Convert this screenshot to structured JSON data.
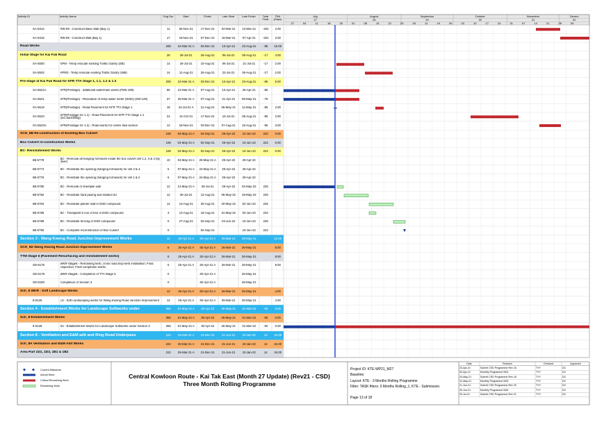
{
  "columns": [
    "Activity ID",
    "Activity Name",
    "Orig Dur",
    "Start",
    "Finish",
    "Late Start",
    "Late Finish",
    "Total Float",
    "TBA (Days)"
  ],
  "timeline": {
    "months": [
      "July",
      "August",
      "September",
      "October",
      "November",
      "Decem"
    ],
    "periods": [
      27,
      28,
      29,
      30,
      31,
      32
    ],
    "weeks": [
      "27",
      "04",
      "11",
      "18",
      "25",
      "01",
      "08",
      "15",
      "22",
      "29",
      "05",
      "12",
      "19",
      "26",
      "03",
      "10",
      "17",
      "24",
      "31",
      "07",
      "14",
      "21",
      "28",
      "05"
    ]
  },
  "rows": [
    {
      "id": "SA-5312",
      "name": "RW-09 - Construct Base Slab (Bay 1)",
      "dur": 11,
      "start": "05-Nov-21",
      "finish": "17-Nov-21",
      "ls": "02-Mar-21",
      "lf": "13-Mar-21",
      "tf": -202,
      "tba": "2.00"
    },
    {
      "id": "SA-5316",
      "name": "RW-09 - Construct Wall (Bay 1)",
      "dur": 17,
      "start": "18-Nov-21",
      "finish": "07-Dec-21",
      "ls": "15-Mar-21",
      "lf": "07-Apr-21",
      "tf": -201,
      "tba": "2.00"
    },
    {
      "name": "Road Works",
      "dur": 208,
      "start": "24-Mar-21 A",
      "finish": "03-Dec-21",
      "ls": "13-Apr-21",
      "lf": "23-Aug-21",
      "tf": -85,
      "tba": "10.00"
    },
    {
      "name": "Initial Stage for Kai Fuk Road",
      "dur": 28,
      "start": "26-Jul-21",
      "finish": "26-Aug-21",
      "ls": "06-Jul-21",
      "lf": "06-Aug-21",
      "tf": -17,
      "tba": "4.00"
    },
    {
      "id": "SA-5500",
      "name": "KPM - Temp relocate existing Traffic Gantry (EB)",
      "dur": 14,
      "start": "26-Jul-21",
      "finish": "10-Aug-21",
      "ls": "06-Jul-21",
      "lf": "21-Jul-21",
      "tf": -17,
      "tba": "2.00"
    },
    {
      "id": "SA-5502",
      "name": "KPRD - Temp relocate existing Traffic Gantry (WB)",
      "dur": 14,
      "start": "11-Aug-21",
      "finish": "26-Aug-21",
      "ls": "22-Jul-21",
      "lf": "06-Aug-21",
      "tf": -17,
      "tba": "2.00"
    },
    {
      "name": "Pre-stage at Kai Fuk Road for KFR TTA Stage 1, 1.1, 1.2 & 1.3",
      "dur": 208,
      "start": "24-Mar-21 A",
      "finish": "03-Dec-21",
      "ls": "13-Apr-21",
      "lf": "23-Aug-21",
      "tf": -85,
      "tba": "6.00"
    },
    {
      "id": "SA-5521A",
      "name": "KFR(Prestage) - additional watermain works (FMS-199)",
      "dur": 55,
      "start": "24-Mar-21 A",
      "finish": "07-Aug-21",
      "ls": "13-Apr-21",
      "lf": "26-Apr-21",
      "tf": -85
    },
    {
      "id": "SA-5521",
      "name": "KFR(Prestage) - Relocation of temp water meter (WSD) (SW-129)",
      "dur": 37,
      "start": "25-Mar-21 A",
      "finish": "07-Aug-21",
      "ls": "21-Apr-21",
      "lf": "05-May-21",
      "tf": -78
    },
    {
      "id": "SA-5519",
      "name": "KFR(Prestage) - Road Pavement for KFR TTA Stage 1",
      "dur": 18,
      "start": "24-Jul-21 A",
      "finish": "21-Aug-21",
      "ls": "06-May-21",
      "lf": "11-May-21",
      "tf": -85,
      "tba": "2.00"
    },
    {
      "id": "SA-5523",
      "name": "KFR(Prestage for 1.1) - Road Pavement for KFR TTA Stage 1.1 (incl.backfilling)",
      "dur": 24,
      "start": "21-Oct-21",
      "finish": "17-Nov-21",
      "ls": "10-Jul-21",
      "lf": "06-Aug-21",
      "tf": -85,
      "tba": "2.00"
    },
    {
      "id": "SA-5523A",
      "name": "KFR(Prestage for 1.2) - Road works for centre flow section",
      "dur": 14,
      "start": "18-Nov-21",
      "finish": "03-Dec-21",
      "ls": "07-Aug-21",
      "lf": "23-Aug-21",
      "tf": -85,
      "tba": "3.00"
    },
    {
      "name": "SCH_6B Re-construction of Existing Box Culvert",
      "dur": 108,
      "start": "04-May-21 A",
      "finish": "02-Sep-21",
      "ls": "29-Apr-22",
      "lf": "10-Jun-22",
      "tf": 222,
      "tba": "0.00"
    },
    {
      "name": "Box Culvert re-construction Works",
      "dur": 108,
      "start": "04-May-21 A",
      "finish": "02-Sep-21",
      "ls": "29-Apr-22",
      "lf": "10-Jun-22",
      "tf": 222,
      "tba": "0.00"
    },
    {
      "name": "BC- Reinstatement Works",
      "dur": 108,
      "start": "04-May-21 A",
      "finish": "02-Sep-21",
      "ls": "29-Apr-22",
      "lf": "10-Jun-22",
      "tf": 222,
      "tba": "0.00"
    },
    {
      "id": "6B-5778",
      "name": "BC - Removal all hanging formwork inside the box culvert cell 1,2, 3 & 4 (by diver)",
      "dur": 10,
      "start": "04-May-21 A",
      "finish": "25-May-21 A",
      "ls": "29-Apr-22",
      "lf": "29-Apr-22"
    },
    {
      "id": "6B-5774",
      "name": "BC - Reinstate the opening  (hanging formwork) for cell 3 & 4",
      "dur": 6,
      "start": "07-May-21 A",
      "finish": "24-May-21 A",
      "ls": "29-Apr-22",
      "lf": "29-Apr-22"
    },
    {
      "id": "6B-5776",
      "name": "BC - Reinstate the opening  (hanging formwork) for cell 1 & 2",
      "dur": 6,
      "start": "07-May-21 A",
      "finish": "24-May-21 A",
      "ls": "29-Apr-22",
      "lf": "29-Apr-22"
    },
    {
      "id": "6B-5780",
      "name": "BC - Removal of sheetpile wall",
      "dur": 12,
      "start": "14-May-21 A",
      "finish": "29-Jul-21",
      "ls": "29-Apr-22",
      "lf": "04-May-22",
      "tf": 225
    },
    {
      "id": "6B-5782",
      "name": "BC - Reinstate hard paving and related UU",
      "dur": 12,
      "start": "30-Jul-21",
      "finish": "12-Aug-21",
      "ls": "05-May-22",
      "lf": "19-May-22",
      "tf": 225
    },
    {
      "id": "6B-5784",
      "name": "BC - Reinstate planter wall in DSD compound",
      "dur": 12,
      "start": "13-Aug-21",
      "finish": "26-Aug-21",
      "ls": "20-May-22",
      "lf": "02-Jun-22",
      "tf": 225
    },
    {
      "id": "6B-5786",
      "name": "BC - Transplant 5 nos of tree in DSD compound",
      "dur": 3,
      "start": "13-Aug-21",
      "finish": "16-Aug-21",
      "ls": "31-May-22",
      "lf": "02-Jun-22",
      "tf": 234
    },
    {
      "id": "6B-5788",
      "name": "BC - Reinstate fencing in DSD compound",
      "dur": 6,
      "start": "27-Aug-21",
      "finish": "02-Sep-21",
      "ls": "04-Jun-22",
      "lf": "10-Jun-22",
      "tf": 225
    },
    {
      "id": "6B-5790",
      "name": "BC - Complete reconstruction of Box Culvert",
      "dur": 0,
      "finish": "02-Sep-21",
      "lf": "10-Jun-22",
      "tf": 222
    },
    {
      "name": "Section 3 - Wang Kwong Road Junction Improvement Works",
      "dur": 12,
      "start": "25-Apr-21 A",
      "finish": "30-Apr-21 A",
      "ls": "26-Mar-21",
      "lf": "26-May-21",
      "tba": "12.00"
    },
    {
      "name": "SCH_5D Wang Kwong Road Junction Improvement Works",
      "dur": 6,
      "start": "25-Apr-21 A",
      "finish": "30-Apr-21 A",
      "ls": "26-Mar-21",
      "lf": "26-May-21",
      "tba": "8.00"
    },
    {
      "name": "TTM Stage 6 (Pavement Resurfacing and reinstatement works)",
      "dur": 6,
      "start": "25-Apr-21 A",
      "finish": "30-Apr-21 A",
      "ls": "26-Mar-21",
      "lf": "26-May-21",
      "tba": "8.00"
    },
    {
      "id": "SD-6176",
      "name": "WKR-Stage6 - Remaining kerb, cross road drop kerb installation; Final inspection; Final completion works.",
      "dur": 6,
      "start": "25-Apr-21 A",
      "finish": "30-Apr-21 A",
      "ls": "26-Mar-21",
      "lf": "26-May-21",
      "tba": "8.00"
    },
    {
      "id": "SD-6178",
      "name": "WKR-Stage6 - Completion of TTA Stage 6",
      "dur": 0,
      "finish": "30-Apr-21 A",
      "lf": "26-May-21"
    },
    {
      "id": "SD-6180",
      "name": "Completion of Section 3",
      "dur": 0,
      "finish": "30-Apr-21 A",
      "lf": "26-May-21"
    },
    {
      "name": "Sch_8 WKR - Soft Landscape Works",
      "dur": 12,
      "start": "26-Apr-21 A",
      "finish": "30-Apr-21 A",
      "ls": "26-Mar-21",
      "lf": "26-May-21",
      "tba": "4.00"
    },
    {
      "id": "8-6126",
      "name": "LS - Soft Landscaping works for Wang Kwong Road Junction Improvement",
      "dur": 12,
      "start": "26-Apr-21 A",
      "finish": "30-Apr-21 A",
      "ls": "26-Mar-21",
      "lf": "26-May-21",
      "tba": "4.00"
    },
    {
      "name": "Section 4 - Establishment Works for Landscape Softworks under",
      "dur": 365,
      "start": "01-May-21 A",
      "finish": "30-Apr-22",
      "ls": "26-May-21",
      "lf": "01-Mar-22",
      "tf": -60,
      "tba": "0.00"
    },
    {
      "name": "Sch_8 Establishment Works",
      "dur": 365,
      "start": "01-May-21 A",
      "finish": "30-Apr-22",
      "ls": "26-May-21",
      "lf": "01-Mar-22",
      "tf": -60,
      "tba": "0.00"
    },
    {
      "id": "8-6128",
      "name": "S4 - Establishment Works for Landscape Softworks under Section 3",
      "dur": 365,
      "start": "01-May-21 A",
      "finish": "30-Apr-22",
      "ls": "26-May-21",
      "lf": "01-Mar-22",
      "tf": -60,
      "tba": "0.00"
    },
    {
      "name": "Section 8 - Ventilation and E&M adit and Ring Road Underpass",
      "dur": 222,
      "start": "25-Mar-21 A",
      "finish": "21-Dec-21",
      "ls": "21-Jun-21",
      "lf": "10-Jan-22",
      "tf": 14,
      "tba": "34.00"
    },
    {
      "name": "Sch_8A Ventilation and E&M Adit Works",
      "dur": 222,
      "start": "25-Mar-21 A",
      "finish": "21-Dec-21",
      "ls": "21-Jun-21",
      "lf": "10-Jan-22",
      "tf": 14,
      "tba": "34.00"
    },
    {
      "name": "Area Part 1D1, 1D3, 1B1 & 1B2",
      "dur": 222,
      "start": "25-Mar-21 A",
      "finish": "21-Dec-21",
      "ls": "21-Jun-21",
      "lf": "10-Jan-22",
      "tf": 14,
      "tba": "34.00"
    }
  ],
  "legend": [
    "Current Milestone",
    "Actual Work",
    "Critical Remaining Work",
    "Remaining Work"
  ],
  "title": {
    "line1": "Central Kowloon Route - Kai Tak East (Month 27 Update) (Rev21 - CSD)",
    "line2": "Three Month Rolling Programme"
  },
  "project_info": {
    "project_id": "Project ID: KTE-WP21_M27",
    "baseline": "Baseline:",
    "layout": "Layout: KTE - 3 Months Rolling Programme",
    "filter": "Filter: TASK filters: 3 Months Rolling_1, KTE - Submission.",
    "page": "Page 13 of 18"
  },
  "revisions": {
    "header": [
      "Date",
      "Revision",
      "Checked",
      "Approved"
    ],
    "rows": [
      [
        "20-Apr-21",
        "Submit CSD Programme Rev 16",
        "TYY",
        "DC"
      ],
      [
        "30-Apr-21",
        "Monthly Programme M24",
        "TYY",
        "DC"
      ],
      [
        "20-May-21",
        "Submit CSD Programme Rev 18",
        "TYY",
        "DC"
      ],
      [
        "31-May-21",
        "Monthly Programme M25",
        "TYY",
        "DC"
      ],
      [
        "21-Jun-21",
        "Submit CSD Programme Rev 20",
        "TYY",
        "DC"
      ],
      [
        "30-Jun-21",
        "Monthly Programme M26",
        "TYY",
        "DC"
      ],
      [
        "20-Jul-21",
        "Submit CSD Programme Rev 21",
        "TYY",
        "DC"
      ]
    ]
  }
}
